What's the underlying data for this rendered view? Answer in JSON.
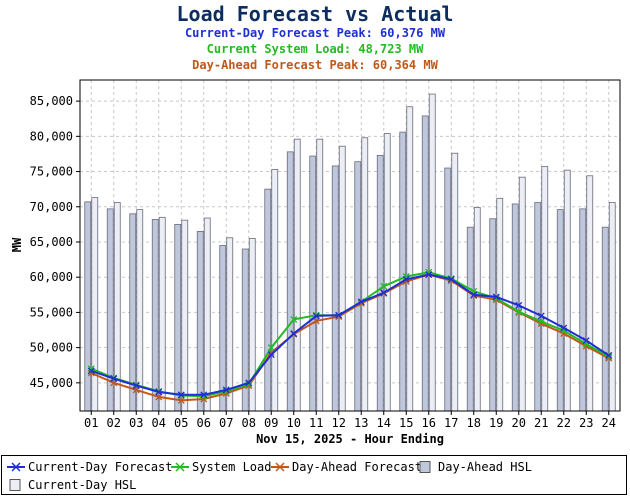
{
  "header": {
    "title": "Load Forecast vs Actual",
    "current_day_peak": "Current-Day Forecast Peak:  60,376 MW",
    "system_load": "Current System Load:  48,723 MW",
    "day_ahead_peak": "Day-Ahead Forecast Peak:  60,364 MW"
  },
  "colors": {
    "title": "#0d2d5e",
    "current_day": "#1f2fd6",
    "system_load": "#22bb22",
    "day_ahead": "#c0581a",
    "day_ahead_hsl": "#bfc7dc",
    "current_day_hsl": "#eceef6"
  },
  "chart_data": {
    "type": "bar",
    "title": "Load Forecast vs Actual",
    "xlabel": "Nov 15, 2025 - Hour Ending",
    "ylabel": "MW",
    "ylim": [
      41000,
      88000
    ],
    "yticks": [
      45000,
      50000,
      55000,
      60000,
      65000,
      70000,
      75000,
      80000,
      85000
    ],
    "ytick_labels": [
      "45,000",
      "50,000",
      "55,000",
      "60,000",
      "65,000",
      "70,000",
      "75,000",
      "80,000",
      "85,000"
    ],
    "grid": true,
    "legend_position": "bottom",
    "categories": [
      "01",
      "02",
      "03",
      "04",
      "05",
      "06",
      "07",
      "08",
      "09",
      "10",
      "11",
      "12",
      "13",
      "14",
      "15",
      "16",
      "17",
      "18",
      "19",
      "20",
      "21",
      "22",
      "23",
      "24"
    ],
    "series": [
      {
        "name": "Current-Day Forecast",
        "kind": "line",
        "color": "#1f2fd6",
        "values": [
          46700,
          45600,
          44600,
          43700,
          43300,
          43300,
          44000,
          45000,
          49000,
          52000,
          54500,
          54600,
          56500,
          57800,
          59700,
          60376,
          59700,
          57500,
          57200,
          56000,
          54500,
          52800,
          51000,
          48900
        ]
      },
      {
        "name": "System Load",
        "kind": "line",
        "color": "#22bb22",
        "values": [
          47000,
          45700,
          44700,
          43800,
          43200,
          43100,
          43800,
          44800,
          50000,
          54000,
          54600,
          54600,
          56500,
          58700,
          60100,
          60700,
          59800,
          58000,
          57000,
          55100,
          53700,
          52400,
          50500,
          48723
        ]
      },
      {
        "name": "Day-Ahead Forecast",
        "kind": "line",
        "color": "#c0581a",
        "values": [
          46400,
          45000,
          44000,
          43000,
          42500,
          42700,
          43500,
          44600,
          49300,
          51900,
          53800,
          54400,
          56300,
          57700,
          59400,
          60364,
          59500,
          57400,
          56800,
          55000,
          53400,
          52000,
          50200,
          48500
        ]
      },
      {
        "name": "Day-Ahead HSL",
        "kind": "bar",
        "color": "#bfc7dc",
        "values": [
          70700,
          69700,
          69000,
          68200,
          67500,
          66500,
          64500,
          64000,
          72500,
          77800,
          77200,
          75800,
          76400,
          77300,
          80600,
          82900,
          75500,
          67100,
          68300,
          70400,
          70600,
          69600,
          69700,
          67100
        ]
      },
      {
        "name": "Current-Day HSL",
        "kind": "bar",
        "color": "#eceef6",
        "values": [
          71300,
          70600,
          69600,
          68500,
          68100,
          68400,
          65600,
          65500,
          75300,
          79600,
          79600,
          78600,
          79800,
          80400,
          84200,
          86000,
          77600,
          69900,
          71200,
          74200,
          75700,
          75200,
          74400,
          70600
        ]
      }
    ]
  },
  "legend": [
    {
      "label": "Current-Day Forecast",
      "shape": "line"
    },
    {
      "label": "System Load",
      "shape": "line"
    },
    {
      "label": "Day-Ahead Forecast",
      "shape": "line"
    },
    {
      "label": "Day-Ahead HSL",
      "shape": "box"
    },
    {
      "label": "Current-Day HSL",
      "shape": "box"
    }
  ]
}
